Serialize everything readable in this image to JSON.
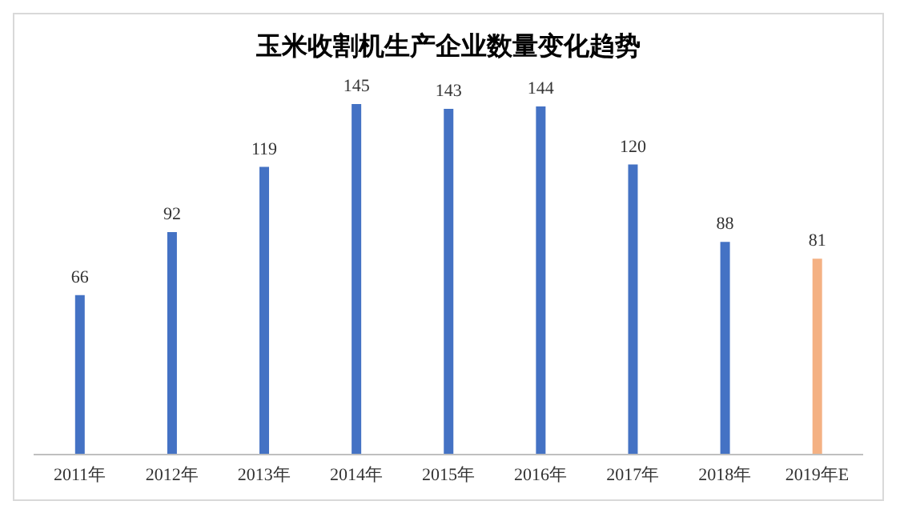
{
  "chart_data": {
    "type": "bar",
    "title": "玉米收割机生产企业数量变化趋势",
    "categories": [
      "2011年",
      "2012年",
      "2013年",
      "2014年",
      "2015年",
      "2016年",
      "2017年",
      "2018年",
      "2019年E"
    ],
    "values": [
      66,
      92,
      119,
      145,
      143,
      144,
      120,
      88,
      81
    ],
    "colors": [
      "#4472c4",
      "#4472c4",
      "#4472c4",
      "#4472c4",
      "#4472c4",
      "#4472c4",
      "#4472c4",
      "#4472c4",
      "#f4b183"
    ],
    "data_labels": true,
    "legend": false,
    "grid": false
  }
}
